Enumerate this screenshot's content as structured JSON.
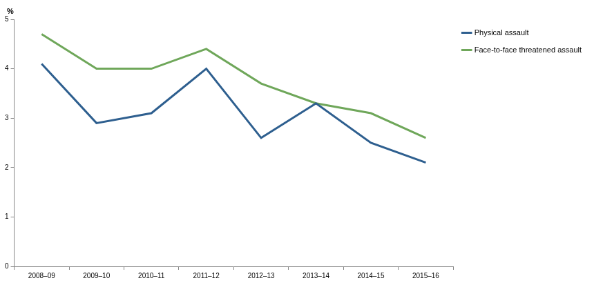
{
  "chart_data": {
    "type": "line",
    "ylabel": "%",
    "categories": [
      "2008–09",
      "2009–10",
      "2010–11",
      "2011–12",
      "2012–13",
      "2013–14",
      "2014–15",
      "2015–16"
    ],
    "series": [
      {
        "name": "Physical assault",
        "color": "#2e5f8f",
        "values": [
          4.1,
          2.9,
          3.1,
          4.0,
          2.6,
          3.3,
          2.5,
          2.1
        ]
      },
      {
        "name": "Face-to-face threatened assault",
        "color": "#6fa75a",
        "values": [
          4.7,
          4.0,
          4.0,
          4.4,
          3.7,
          3.3,
          3.1,
          2.6
        ]
      }
    ],
    "ylim": [
      0,
      5
    ],
    "yticks": [
      0,
      1,
      2,
      3,
      4,
      5
    ],
    "grid": false,
    "legend": "right"
  }
}
